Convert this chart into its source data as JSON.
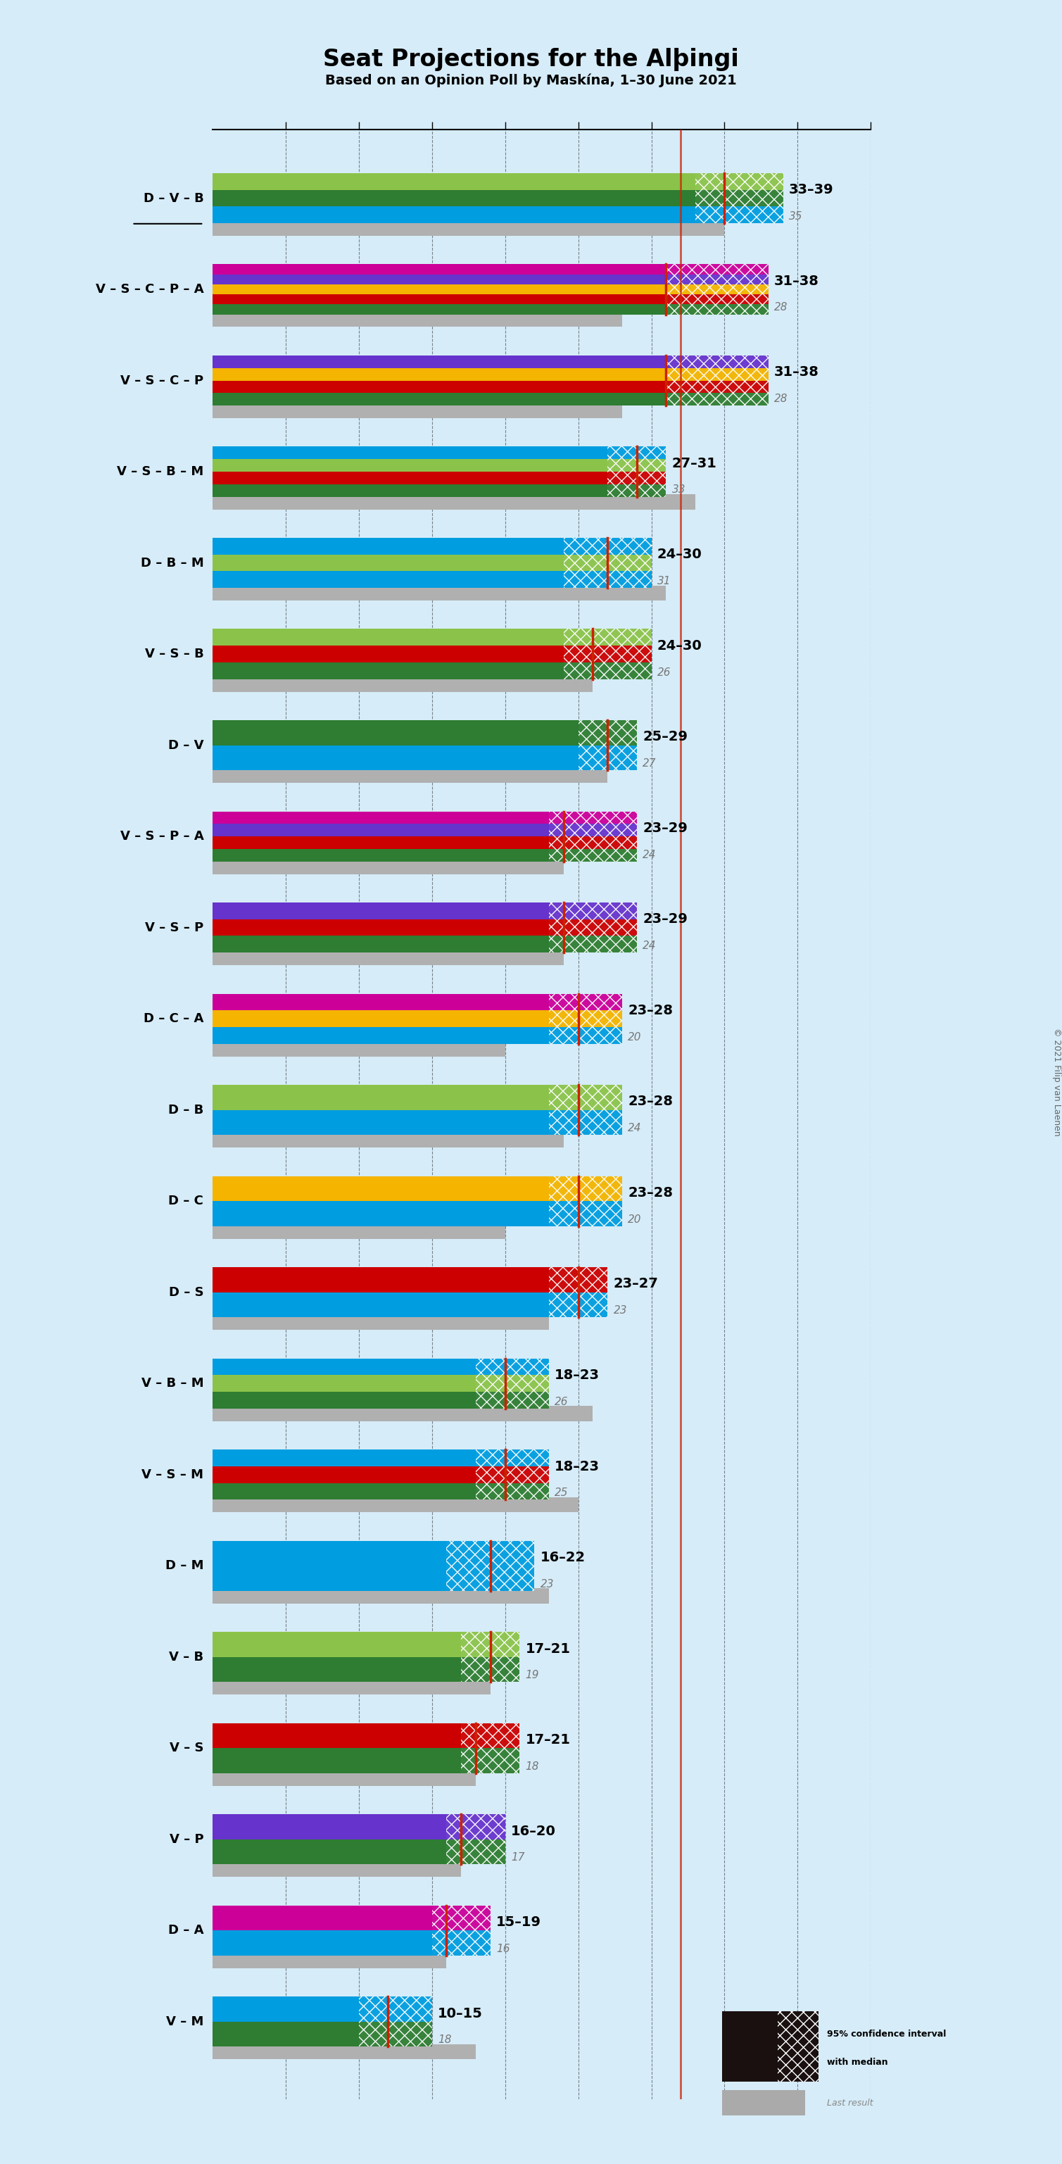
{
  "title": "Seat Projections for the Alþingi",
  "subtitle": "Based on an Opinion Poll by Maskína, 1–30 June 2021",
  "copyright": "© 2021 Filip van Laenen",
  "background_color": "#d6ecf8",
  "majority_seat": 32,
  "coalitions": [
    {
      "name": "D – V – B",
      "low": 33,
      "high": 39,
      "median": 35,
      "last": 35,
      "colors": [
        "#009de0",
        "#2e7d32",
        "#8bc34a"
      ],
      "underline": true
    },
    {
      "name": "V – S – C – P – A",
      "low": 31,
      "high": 38,
      "median": 31,
      "last": 28,
      "colors": [
        "#2e7d32",
        "#cc0000",
        "#f4b400",
        "#6633cc",
        "#cc0099"
      ],
      "underline": false
    },
    {
      "name": "V – S – C – P",
      "low": 31,
      "high": 38,
      "median": 31,
      "last": 28,
      "colors": [
        "#2e7d32",
        "#cc0000",
        "#f4b400",
        "#6633cc"
      ],
      "underline": false
    },
    {
      "name": "V – S – B – M",
      "low": 27,
      "high": 31,
      "median": 29,
      "last": 33,
      "colors": [
        "#2e7d32",
        "#cc0000",
        "#8bc34a",
        "#009de0"
      ],
      "underline": false
    },
    {
      "name": "D – B – M",
      "low": 24,
      "high": 30,
      "median": 27,
      "last": 31,
      "colors": [
        "#009de0",
        "#8bc34a",
        "#009de0"
      ],
      "underline": false
    },
    {
      "name": "V – S – B",
      "low": 24,
      "high": 30,
      "median": 26,
      "last": 26,
      "colors": [
        "#2e7d32",
        "#cc0000",
        "#8bc34a"
      ],
      "underline": false
    },
    {
      "name": "D – V",
      "low": 25,
      "high": 29,
      "median": 27,
      "last": 27,
      "colors": [
        "#009de0",
        "#2e7d32"
      ],
      "underline": false
    },
    {
      "name": "V – S – P – A",
      "low": 23,
      "high": 29,
      "median": 24,
      "last": 24,
      "colors": [
        "#2e7d32",
        "#cc0000",
        "#6633cc",
        "#cc0099"
      ],
      "underline": false
    },
    {
      "name": "V – S – P",
      "low": 23,
      "high": 29,
      "median": 24,
      "last": 24,
      "colors": [
        "#2e7d32",
        "#cc0000",
        "#6633cc"
      ],
      "underline": false
    },
    {
      "name": "D – C – A",
      "low": 23,
      "high": 28,
      "median": 25,
      "last": 20,
      "colors": [
        "#009de0",
        "#f4b400",
        "#cc0099"
      ],
      "underline": false
    },
    {
      "name": "D – B",
      "low": 23,
      "high": 28,
      "median": 25,
      "last": 24,
      "colors": [
        "#009de0",
        "#8bc34a"
      ],
      "underline": false
    },
    {
      "name": "D – C",
      "low": 23,
      "high": 28,
      "median": 25,
      "last": 20,
      "colors": [
        "#009de0",
        "#f4b400"
      ],
      "underline": false
    },
    {
      "name": "D – S",
      "low": 23,
      "high": 27,
      "median": 25,
      "last": 23,
      "colors": [
        "#009de0",
        "#cc0000"
      ],
      "underline": false
    },
    {
      "name": "V – B – M",
      "low": 18,
      "high": 23,
      "median": 20,
      "last": 26,
      "colors": [
        "#2e7d32",
        "#8bc34a",
        "#009de0"
      ],
      "underline": false
    },
    {
      "name": "V – S – M",
      "low": 18,
      "high": 23,
      "median": 20,
      "last": 25,
      "colors": [
        "#2e7d32",
        "#cc0000",
        "#009de0"
      ],
      "underline": false
    },
    {
      "name": "D – M",
      "low": 16,
      "high": 22,
      "median": 19,
      "last": 23,
      "colors": [
        "#009de0",
        "#009de0"
      ],
      "underline": false
    },
    {
      "name": "V – B",
      "low": 17,
      "high": 21,
      "median": 19,
      "last": 19,
      "colors": [
        "#2e7d32",
        "#8bc34a"
      ],
      "underline": false
    },
    {
      "name": "V – S",
      "low": 17,
      "high": 21,
      "median": 18,
      "last": 18,
      "colors": [
        "#2e7d32",
        "#cc0000"
      ],
      "underline": false
    },
    {
      "name": "V – P",
      "low": 16,
      "high": 20,
      "median": 17,
      "last": 17,
      "colors": [
        "#2e7d32",
        "#6633cc"
      ],
      "underline": false
    },
    {
      "name": "D – A",
      "low": 15,
      "high": 19,
      "median": 16,
      "last": 16,
      "colors": [
        "#009de0",
        "#cc0099"
      ],
      "underline": false
    },
    {
      "name": "V – M",
      "low": 10,
      "high": 15,
      "median": 12,
      "last": 18,
      "colors": [
        "#2e7d32",
        "#009de0"
      ],
      "underline": false
    }
  ],
  "xlim": [
    0,
    45
  ],
  "tick_positions": [
    5,
    10,
    15,
    20,
    25,
    30,
    35,
    40,
    45
  ]
}
